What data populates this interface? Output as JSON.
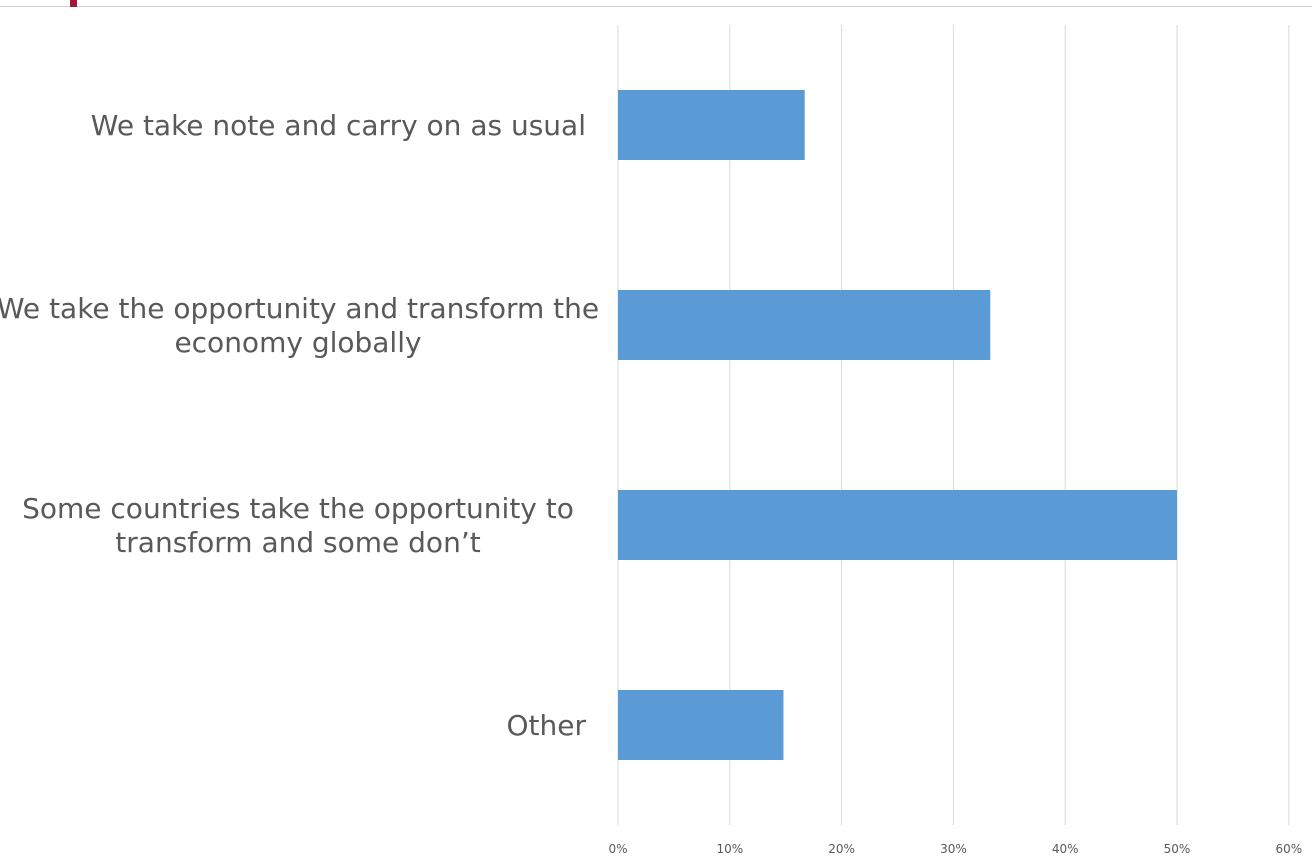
{
  "chart_data": {
    "type": "bar",
    "orientation": "horizontal",
    "categories": [
      [
        "We take note and carry on as usual"
      ],
      [
        "We take the opportunity and transform the",
        "economy globally"
      ],
      [
        "Some countries take the opportunity to",
        "transform and some don’t"
      ],
      [
        "Other"
      ]
    ],
    "values": [
      16.7,
      33.3,
      50,
      14.8
    ],
    "x_ticks": [
      "0%",
      "10%",
      "20%",
      "30%",
      "40%",
      "50%",
      "60%"
    ],
    "xlim": [
      0,
      60
    ],
    "value_unit": "%",
    "grid": "vertical",
    "bar_color": "#5b9bd5",
    "title": "",
    "xlabel": "",
    "ylabel": ""
  },
  "colors": {
    "accent": "#a3163a",
    "grid": "#d9d9d9",
    "text": "#595959"
  }
}
